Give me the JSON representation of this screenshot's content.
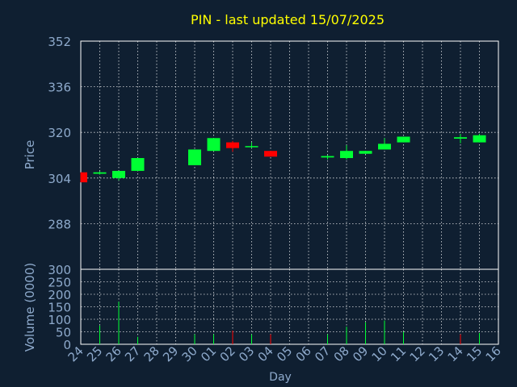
{
  "chart_data": {
    "type": "candlestick",
    "title": "PIN - last updated 15/07/2025",
    "price_axis": {
      "label": "Price",
      "ylim": [
        272,
        352
      ],
      "ticks": [
        "352",
        "336",
        "320",
        "304",
        "288"
      ]
    },
    "volume_axis": {
      "label": "Volume (0000)",
      "ylim": [
        0,
        300
      ],
      "ticks": [
        "300",
        "250",
        "200",
        "150",
        "100",
        "50",
        "0"
      ]
    },
    "xlabel": "Day",
    "x_ticks": [
      "24",
      "25",
      "26",
      "27",
      "28",
      "29",
      "30",
      "01",
      "02",
      "03",
      "04",
      "05",
      "06",
      "07",
      "08",
      "09",
      "10",
      "11",
      "12",
      "13",
      "14",
      "15",
      "16"
    ],
    "grid": true,
    "colors": {
      "background": "#0f1f31",
      "up": "#00ff33",
      "down": "#ff0000",
      "title": "#ffff00",
      "axis_text": "#8eaacc",
      "grid": "#ffffff"
    },
    "candles": [
      {
        "day": "24",
        "open": 306.0,
        "close": 302.5,
        "high": 306.0,
        "low": 302.5,
        "volume": 0
      },
      {
        "day": "25",
        "open": 305.5,
        "close": 306.0,
        "high": 306.3,
        "low": 305.2,
        "volume": 75
      },
      {
        "day": "26",
        "open": 304.0,
        "close": 306.5,
        "high": 306.5,
        "low": 303.2,
        "volume": 170
      },
      {
        "day": "27",
        "open": 306.5,
        "close": 311.0,
        "high": 311.0,
        "low": 306.5,
        "volume": 30
      },
      {
        "day": "30",
        "open": 308.5,
        "close": 314.0,
        "high": 314.0,
        "low": 308.5,
        "volume": 40
      },
      {
        "day": "01",
        "open": 313.5,
        "close": 318.0,
        "high": 318.0,
        "low": 313.5,
        "volume": 40
      },
      {
        "day": "02",
        "open": 316.5,
        "close": 314.5,
        "high": 317.0,
        "low": 313.2,
        "volume": 55
      },
      {
        "day": "03",
        "open": 314.8,
        "close": 315.2,
        "high": 316.5,
        "low": 314.5,
        "volume": 40
      },
      {
        "day": "04",
        "open": 313.5,
        "close": 311.5,
        "high": 313.5,
        "low": 311.5,
        "volume": 40
      },
      {
        "day": "07",
        "open": 311.2,
        "close": 311.7,
        "high": 312.0,
        "low": 310.5,
        "volume": 40
      },
      {
        "day": "08",
        "open": 311.0,
        "close": 313.5,
        "high": 315.5,
        "low": 310.5,
        "volume": 70
      },
      {
        "day": "09",
        "open": 312.5,
        "close": 313.5,
        "high": 313.5,
        "low": 312.5,
        "volume": 88
      },
      {
        "day": "10",
        "open": 314.0,
        "close": 316.0,
        "high": 318.0,
        "low": 314.0,
        "volume": 95
      },
      {
        "day": "11",
        "open": 316.5,
        "close": 318.5,
        "high": 318.5,
        "low": 316.5,
        "volume": 50
      },
      {
        "day": "14",
        "open": 317.8,
        "close": 318.3,
        "high": 319.5,
        "low": 316.2,
        "volume": 40
      },
      {
        "day": "15",
        "open": 316.5,
        "close": 319.0,
        "high": 319.5,
        "low": 316.5,
        "volume": 45
      }
    ]
  }
}
